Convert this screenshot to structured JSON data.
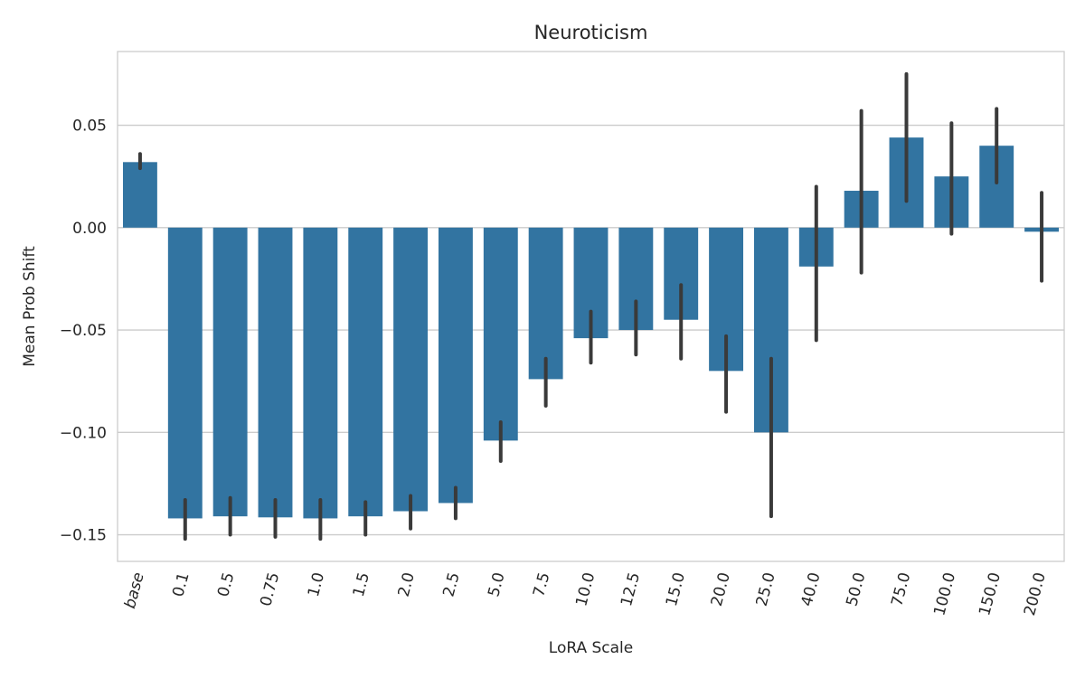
{
  "chart_data": {
    "type": "bar",
    "title": "Neuroticism",
    "xlabel": "LoRA Scale",
    "ylabel": "Mean Prob Shift",
    "categories": [
      "base",
      "0.1",
      "0.5",
      "0.75",
      "1.0",
      "1.5",
      "2.0",
      "2.5",
      "5.0",
      "7.5",
      "10.0",
      "12.5",
      "15.0",
      "20.0",
      "25.0",
      "40.0",
      "50.0",
      "75.0",
      "100.0",
      "150.0",
      "200.0"
    ],
    "values": [
      0.032,
      -0.142,
      -0.141,
      -0.1415,
      -0.142,
      -0.141,
      -0.1385,
      -0.1345,
      -0.104,
      -0.074,
      -0.054,
      -0.05,
      -0.045,
      -0.07,
      -0.1,
      -0.019,
      0.018,
      0.044,
      0.025,
      0.04,
      -0.002
    ],
    "error_low": [
      0.029,
      -0.152,
      -0.15,
      -0.151,
      -0.152,
      -0.15,
      -0.147,
      -0.142,
      -0.114,
      -0.087,
      -0.066,
      -0.062,
      -0.064,
      -0.09,
      -0.141,
      -0.055,
      -0.022,
      0.013,
      -0.003,
      0.022,
      -0.026
    ],
    "error_high": [
      0.036,
      -0.133,
      -0.132,
      -0.133,
      -0.133,
      -0.134,
      -0.131,
      -0.127,
      -0.095,
      -0.064,
      -0.041,
      -0.036,
      -0.028,
      -0.053,
      -0.064,
      0.02,
      0.057,
      0.075,
      0.051,
      0.058,
      0.017
    ],
    "yticks": [
      0.05,
      0.0,
      -0.05,
      -0.1,
      -0.15
    ],
    "ytick_labels": [
      "0.05",
      "0.00",
      "−0.05",
      "−0.10",
      "−0.15"
    ],
    "ylim": [
      -0.163,
      0.086
    ],
    "grid": true,
    "colors": {
      "bar": "#3274a1",
      "error": "#3a3a3a",
      "grid": "#cccccc"
    }
  }
}
